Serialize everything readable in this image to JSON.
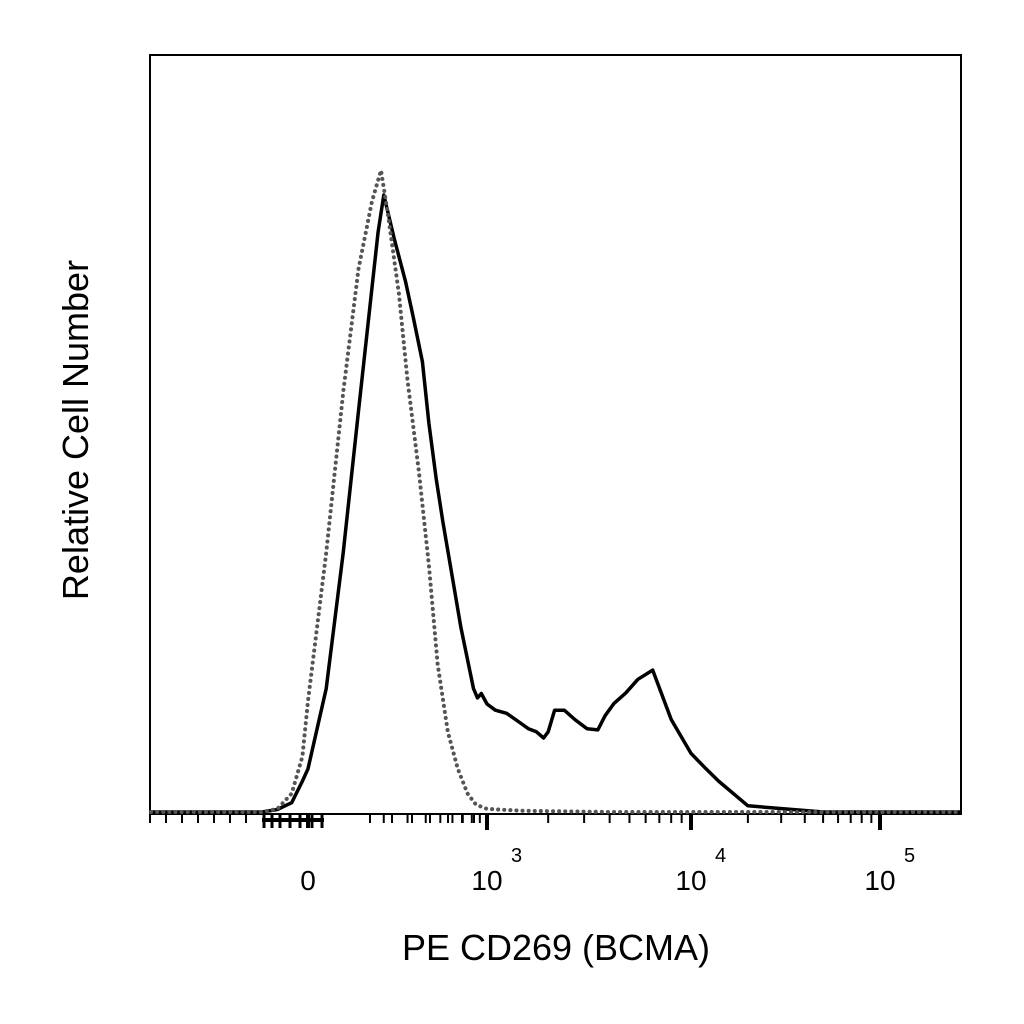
{
  "chart_data": {
    "type": "line",
    "title": "",
    "xlabel": "PE  CD269 (BCMA)",
    "ylabel": "Relative Cell Number",
    "x_scale": "biexponential",
    "grid": false,
    "legend": "none",
    "x_tick_labels": [
      {
        "base": "0",
        "exp": ""
      },
      {
        "base": "10",
        "exp": "3"
      },
      {
        "base": "10",
        "exp": "4"
      },
      {
        "base": "10",
        "exp": "5"
      }
    ],
    "series": [
      {
        "style": "solid",
        "color": "#000000",
        "x": [
          -200,
          -120,
          -60,
          -20,
          0,
          40,
          80,
          120,
          160,
          180,
          200,
          240,
          290,
          330,
          380,
          420,
          470,
          520,
          600,
          680,
          760,
          820,
          870,
          920,
          1000,
          1100,
          1250,
          1450,
          1600,
          1750,
          1900,
          2000,
          2150,
          2400,
          2700,
          3100,
          3500,
          3800,
          4200,
          4800,
          5500,
          6500,
          8000,
          10000,
          12000,
          14000,
          20000,
          50000,
          200000
        ],
        "y": [
          0,
          0.4,
          1.5,
          5,
          7,
          20,
          42,
          65,
          85,
          94,
          100,
          93,
          86,
          80,
          73,
          63,
          54,
          47,
          38,
          30,
          24,
          20,
          18.5,
          19.2,
          17.5,
          16.5,
          16,
          14.5,
          13.5,
          13,
          12,
          13,
          16.5,
          16.5,
          15,
          13.5,
          13.3,
          15.6,
          17.6,
          19.3,
          21.5,
          23,
          15,
          9.5,
          7,
          5,
          1,
          0,
          0
        ]
      },
      {
        "style": "dotted",
        "color": "#555555",
        "x": [
          -200,
          -120,
          -60,
          -20,
          0,
          40,
          80,
          120,
          160,
          190,
          215,
          260,
          300,
          360,
          420,
          480,
          560,
          650,
          750,
          850,
          1000,
          1500,
          4000,
          200000
        ],
        "y": [
          0,
          0.5,
          3,
          9,
          18,
          42,
          68,
          88,
          99,
          104,
          97,
          84,
          70,
          55,
          40,
          24,
          13,
          7,
          3,
          1.2,
          0.5,
          0.2,
          0,
          0
        ]
      }
    ]
  }
}
